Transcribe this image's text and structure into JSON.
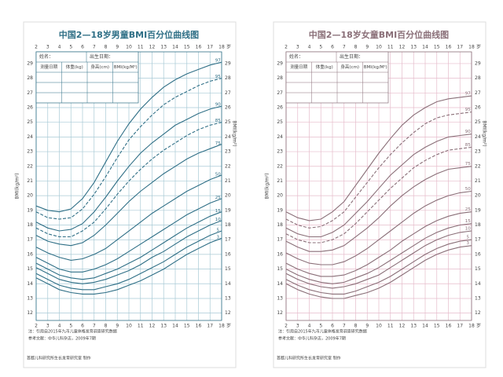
{
  "chart_data": [
    {
      "type": "line",
      "title": "中国2—18岁男童BMI百分位曲线图",
      "y_label": "BMI(kg/m²)",
      "x_unit": "岁",
      "x": [
        2,
        3,
        4,
        5,
        6,
        7,
        8,
        9,
        10,
        11,
        12,
        13,
        14,
        15,
        16,
        17,
        18
      ],
      "xlim": [
        2,
        18
      ],
      "xticks": [
        2,
        3,
        4,
        5,
        6,
        7,
        8,
        9,
        10,
        11,
        12,
        13,
        14,
        15,
        16,
        17,
        18
      ],
      "ylim": [
        11.5,
        29.8
      ],
      "yticks": [
        12,
        13,
        14,
        15,
        16,
        17,
        18,
        19,
        20,
        21,
        22,
        23,
        24,
        25,
        26,
        27,
        28,
        29
      ],
      "grid": true,
      "grid_color": "#a9cad6",
      "form": {
        "name_label": "姓名：",
        "birth_label": "出生日期：",
        "columns": [
          "测量日期",
          "体重(kg)",
          "身高(cm)",
          "BMI(kg/M²)"
        ]
      },
      "notes": [
        "注：引用自2015年九市儿童体格发育调查研究数据",
        "参考文献：中华儿科杂志，2009年7期"
      ],
      "footer": "首都儿科研究所生长发育研究室 制作",
      "series": [
        {
          "name": "97",
          "color": "#2f6f86",
          "dashed": false,
          "values": [
            19.3,
            19.0,
            18.9,
            19.1,
            19.8,
            20.9,
            22.3,
            23.7,
            24.9,
            25.9,
            26.7,
            27.4,
            27.9,
            28.3,
            28.6,
            28.9,
            29.1
          ]
        },
        {
          "name": "95",
          "color": "#2f6f86",
          "dashed": true,
          "values": [
            18.9,
            18.5,
            18.4,
            18.5,
            19.1,
            20.1,
            21.3,
            22.6,
            23.8,
            24.7,
            25.5,
            26.2,
            26.7,
            27.1,
            27.5,
            27.8,
            28.0
          ]
        },
        {
          "name": "90",
          "color": "#2f6f86",
          "dashed": false,
          "values": [
            18.2,
            17.8,
            17.6,
            17.7,
            18.1,
            18.9,
            19.9,
            21.0,
            22.0,
            22.9,
            23.6,
            24.2,
            24.8,
            25.2,
            25.6,
            25.9,
            26.1
          ]
        },
        {
          "name": "85",
          "color": "#2f6f86",
          "dashed": true,
          "values": [
            17.8,
            17.4,
            17.2,
            17.2,
            17.6,
            18.2,
            19.1,
            20.1,
            21.0,
            21.8,
            22.5,
            23.1,
            23.6,
            24.1,
            24.5,
            24.8,
            25.0
          ]
        },
        {
          "name": "75",
          "color": "#2f6f86",
          "dashed": false,
          "values": [
            17.3,
            16.9,
            16.7,
            16.6,
            16.8,
            17.3,
            18.0,
            18.8,
            19.6,
            20.3,
            20.9,
            21.5,
            22.0,
            22.5,
            22.9,
            23.2,
            23.5
          ]
        },
        {
          "name": "50",
          "color": "#2f6f86",
          "dashed": false,
          "values": [
            16.5,
            16.1,
            15.8,
            15.6,
            15.7,
            16.0,
            16.4,
            17.0,
            17.6,
            18.2,
            18.8,
            19.3,
            19.8,
            20.3,
            20.7,
            21.1,
            21.4
          ]
        },
        {
          "name": "25",
          "color": "#2f6f86",
          "dashed": false,
          "values": [
            15.8,
            15.4,
            15.0,
            14.8,
            14.8,
            15.0,
            15.3,
            15.7,
            16.2,
            16.7,
            17.2,
            17.7,
            18.2,
            18.7,
            19.1,
            19.5,
            19.8
          ]
        },
        {
          "name": "15",
          "color": "#2f6f86",
          "dashed": false,
          "values": [
            15.4,
            15.0,
            14.6,
            14.4,
            14.3,
            14.4,
            14.7,
            15.0,
            15.4,
            15.8,
            16.3,
            16.8,
            17.3,
            17.8,
            18.2,
            18.6,
            18.9
          ]
        },
        {
          "name": "10",
          "color": "#2f6f86",
          "dashed": false,
          "values": [
            15.1,
            14.7,
            14.3,
            14.1,
            14.0,
            14.1,
            14.3,
            14.6,
            14.9,
            15.3,
            15.8,
            16.2,
            16.7,
            17.2,
            17.6,
            18.0,
            18.3
          ]
        },
        {
          "name": "5",
          "color": "#2f6f86",
          "dashed": false,
          "values": [
            14.7,
            14.3,
            13.9,
            13.7,
            13.6,
            13.6,
            13.8,
            14.0,
            14.3,
            14.7,
            15.1,
            15.5,
            16.0,
            16.5,
            16.9,
            17.3,
            17.6
          ]
        },
        {
          "name": "3",
          "color": "#2f6f86",
          "dashed": false,
          "values": [
            14.4,
            14.0,
            13.6,
            13.4,
            13.3,
            13.3,
            13.4,
            13.6,
            13.9,
            14.2,
            14.6,
            15.0,
            15.5,
            16.0,
            16.4,
            16.8,
            17.1
          ]
        }
      ]
    },
    {
      "type": "line",
      "title": "中国2—18岁女童BMI百分位曲线图",
      "y_label": "BMI(kg/m²)",
      "x_unit": "岁",
      "x": [
        2,
        3,
        4,
        5,
        6,
        7,
        8,
        9,
        10,
        11,
        12,
        13,
        14,
        15,
        16,
        17,
        18
      ],
      "xlim": [
        2,
        18
      ],
      "xticks": [
        2,
        3,
        4,
        5,
        6,
        7,
        8,
        9,
        10,
        11,
        12,
        13,
        14,
        15,
        16,
        17,
        18
      ],
      "ylim": [
        11.5,
        29.8
      ],
      "yticks": [
        12,
        13,
        14,
        15,
        16,
        17,
        18,
        19,
        20,
        21,
        22,
        23,
        24,
        25,
        26,
        27,
        28,
        29
      ],
      "grid": true,
      "grid_color": "#e6bccb",
      "form": {
        "name_label": "姓名：",
        "birth_label": "出生日期：",
        "columns": [
          "测量日期",
          "体重(kg)",
          "身高(cm)",
          "BMI(kg/M²)"
        ]
      },
      "notes": [
        "注：引用自2015年九市儿童体格发育调查研究数据",
        "参考文献：中华儿科杂志，2009年7期"
      ],
      "footer": "首都儿科研究所生长发育研究室 制作",
      "series": [
        {
          "name": "97",
          "color": "#8a6f78",
          "dashed": false,
          "values": [
            18.9,
            18.5,
            18.3,
            18.4,
            18.9,
            19.6,
            20.7,
            21.8,
            22.9,
            23.9,
            24.8,
            25.5,
            26.0,
            26.4,
            26.6,
            26.7,
            26.8
          ]
        },
        {
          "name": "95",
          "color": "#8a6f78",
          "dashed": true,
          "values": [
            18.4,
            18.0,
            17.8,
            17.9,
            18.3,
            18.9,
            19.9,
            20.9,
            21.9,
            22.8,
            23.6,
            24.3,
            24.9,
            25.3,
            25.5,
            25.6,
            25.7
          ]
        },
        {
          "name": "90",
          "color": "#8a6f78",
          "dashed": false,
          "values": [
            17.8,
            17.4,
            17.2,
            17.2,
            17.5,
            18.0,
            18.8,
            19.6,
            20.5,
            21.4,
            22.1,
            22.8,
            23.3,
            23.7,
            24.0,
            24.1,
            24.2
          ]
        },
        {
          "name": "85",
          "color": "#8a6f78",
          "dashed": true,
          "values": [
            17.4,
            17.0,
            16.8,
            16.8,
            17.0,
            17.4,
            18.1,
            18.9,
            19.7,
            20.5,
            21.2,
            21.9,
            22.4,
            22.8,
            23.1,
            23.2,
            23.3
          ]
        },
        {
          "name": "75",
          "color": "#8a6f78",
          "dashed": false,
          "values": [
            16.9,
            16.5,
            16.2,
            16.2,
            16.3,
            16.6,
            17.2,
            17.8,
            18.5,
            19.3,
            20.0,
            20.6,
            21.1,
            21.5,
            21.8,
            21.9,
            22.0
          ]
        },
        {
          "name": "50",
          "color": "#8a6f78",
          "dashed": false,
          "values": [
            16.1,
            15.7,
            15.4,
            15.3,
            15.3,
            15.5,
            15.9,
            16.4,
            17.0,
            17.6,
            18.2,
            18.8,
            19.3,
            19.7,
            20.0,
            20.2,
            20.3
          ]
        },
        {
          "name": "25",
          "color": "#8a6f78",
          "dashed": false,
          "values": [
            15.4,
            15.0,
            14.7,
            14.5,
            14.5,
            14.6,
            14.9,
            15.3,
            15.8,
            16.3,
            16.9,
            17.4,
            17.9,
            18.3,
            18.6,
            18.8,
            18.9
          ]
        },
        {
          "name": "15",
          "color": "#8a6f78",
          "dashed": false,
          "values": [
            15.0,
            14.6,
            14.3,
            14.1,
            14.0,
            14.1,
            14.4,
            14.7,
            15.1,
            15.6,
            16.1,
            16.6,
            17.1,
            17.5,
            17.8,
            18.0,
            18.1
          ]
        },
        {
          "name": "10",
          "color": "#8a6f78",
          "dashed": false,
          "values": [
            14.7,
            14.3,
            14.0,
            13.8,
            13.7,
            13.8,
            14.0,
            14.3,
            14.6,
            15.1,
            15.6,
            16.1,
            16.6,
            17.0,
            17.3,
            17.5,
            17.6
          ]
        },
        {
          "name": "5",
          "color": "#8a6f78",
          "dashed": false,
          "values": [
            14.3,
            13.9,
            13.6,
            13.4,
            13.3,
            13.3,
            13.5,
            13.8,
            14.1,
            14.5,
            15.0,
            15.5,
            16.0,
            16.4,
            16.7,
            16.9,
            17.0
          ]
        },
        {
          "name": "3",
          "color": "#8a6f78",
          "dashed": false,
          "values": [
            14.0,
            13.6,
            13.3,
            13.1,
            13.0,
            13.0,
            13.2,
            13.4,
            13.7,
            14.1,
            14.6,
            15.1,
            15.6,
            16.0,
            16.3,
            16.5,
            16.6
          ]
        }
      ]
    }
  ]
}
